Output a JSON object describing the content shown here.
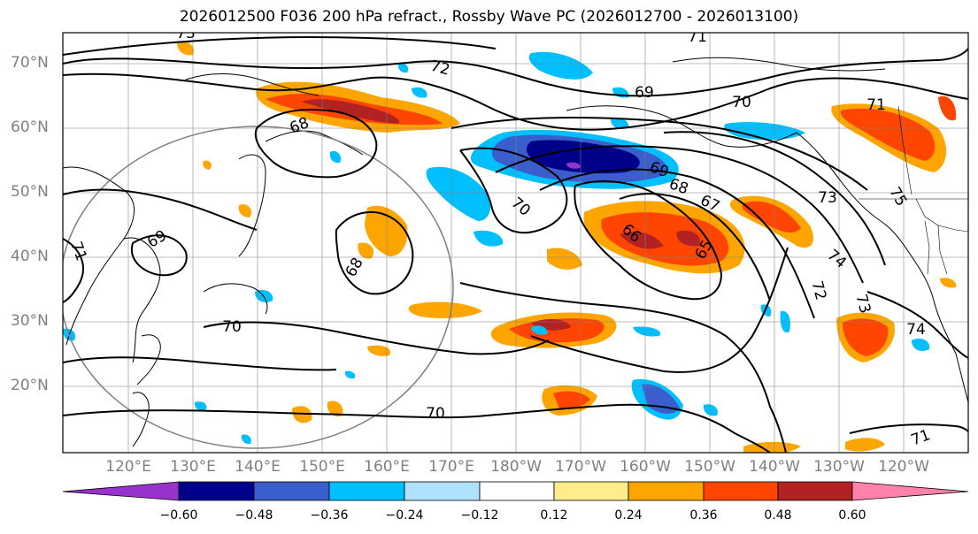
{
  "title": "2026012500 F036 200 hPa refract., Rossby Wave PC (2026012700 - 2026013100)",
  "lat_labels": [
    "70°N",
    "60°N",
    "50°N",
    "40°N",
    "30°N",
    "20°N"
  ],
  "lon_labels": [
    "120°E",
    "130°E",
    "140°E",
    "150°E",
    "160°E",
    "170°E",
    "180°W",
    "170°W",
    "160°W",
    "150°W",
    "140°W",
    "130°W",
    "120°W"
  ],
  "contour_labels": [
    "73",
    "71",
    "72",
    "69",
    "70",
    "71",
    "68",
    "69",
    "68",
    "67",
    "73",
    "75",
    "70",
    "66",
    "65",
    "74",
    "69",
    "71",
    "68",
    "72",
    "73",
    "70",
    "74",
    "70",
    "71"
  ],
  "colorbar": {
    "ticks": [
      "−0.60",
      "−0.48",
      "−0.36",
      "−0.24",
      "−0.12",
      "0.12",
      "0.24",
      "0.36",
      "0.48",
      "0.60"
    ],
    "colors": [
      "#9932cc",
      "#00008b",
      "#3a5fcd",
      "#00bfff",
      "#b0e2ff",
      "#ffffff",
      "#ffec8b",
      "#ffa500",
      "#ff4500",
      "#b22222",
      "#ff82ab"
    ]
  }
}
